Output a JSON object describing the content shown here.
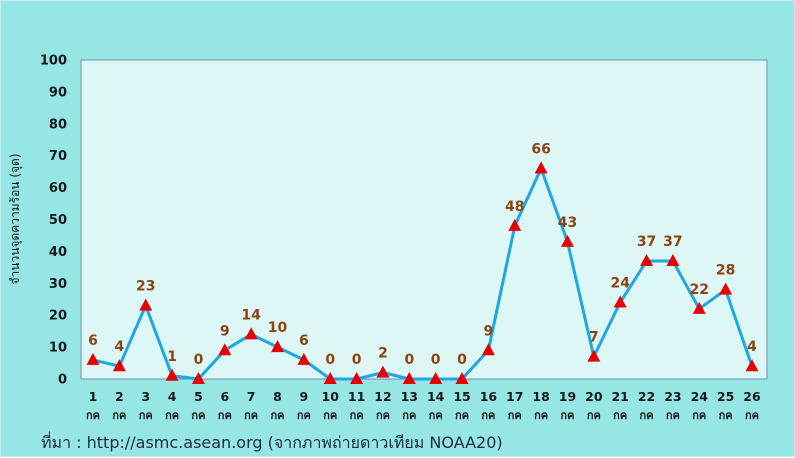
{
  "chart_data": {
    "type": "line",
    "title": "",
    "xlabel": "",
    "ylabel": "จำนวนจุดความร้อน (จุด)",
    "ylim": [
      0,
      100
    ],
    "yticks": [
      0,
      10,
      20,
      30,
      40,
      50,
      60,
      70,
      80,
      90,
      100
    ],
    "grid": false,
    "categories": [
      "1",
      "2",
      "3",
      "4",
      "5",
      "6",
      "7",
      "8",
      "9",
      "10",
      "11",
      "12",
      "13",
      "14",
      "15",
      "16",
      "17",
      "18",
      "19",
      "20",
      "21",
      "22",
      "23",
      "24",
      "25",
      "26"
    ],
    "category_unit": "กค",
    "series": [
      {
        "values": [
          6,
          4,
          23,
          1,
          0,
          9,
          14,
          10,
          6,
          0,
          0,
          2,
          0,
          0,
          0,
          9,
          48,
          66,
          43,
          7,
          24,
          37,
          37,
          22,
          28,
          4
        ]
      }
    ],
    "colors": {
      "line": "#1EA7E1",
      "marker": "#E60000",
      "data_label": "#8B4513",
      "plot_background": "#DDF6F6",
      "outer_background": "#96E6E6"
    }
  },
  "footer": {
    "source_text": "ที่มา : http://asmc.asean.org (จากภาพถ่ายดาวเทียม NOAA20)"
  }
}
